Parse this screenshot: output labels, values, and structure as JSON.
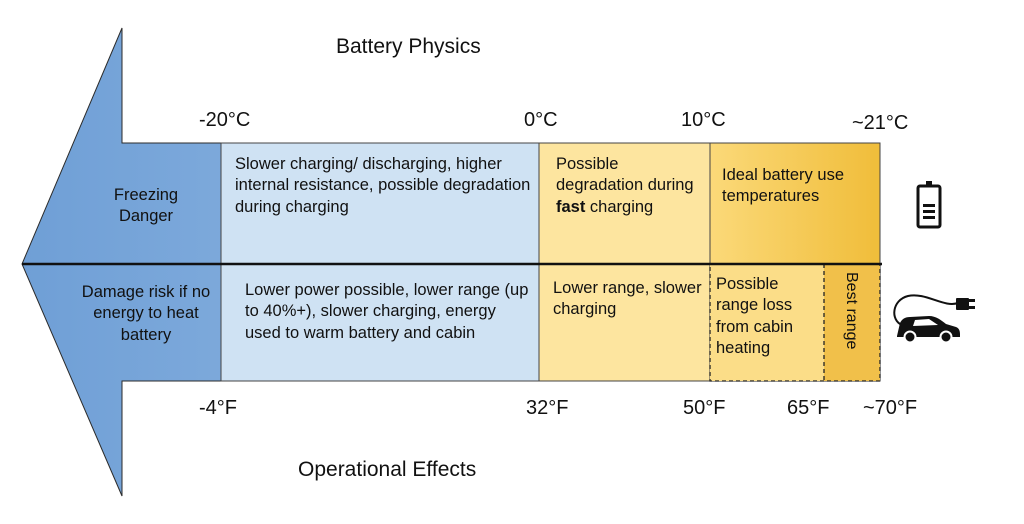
{
  "titles": {
    "top": "Battery Physics",
    "bottom": "Operational Effects"
  },
  "celsius_ticks": [
    "-20°C",
    "0°C",
    "10°C",
    "~21°C"
  ],
  "fahrenheit_ticks": [
    "-4°F",
    "32°F",
    "50°F",
    "65°F",
    "~70°F"
  ],
  "physics_row": {
    "freezing": "Freezing Danger",
    "cold": "Slower charging/ discharging, higher internal resistance, possible degradation during charging",
    "cool_before": "Possible degradation during ",
    "cool_bold": "fast",
    "cool_after": " charging",
    "ideal": "Ideal battery use temperatures"
  },
  "operations_row": {
    "freezing": "Damage risk if no energy to heat battery",
    "cold": "Lower power possible, lower range (up to 40%+), slower charging, energy used to warm battery and cabin",
    "cool": "Lower range, slower charging",
    "mild": "Possible range loss from cabin heating",
    "best": "Best range"
  },
  "icons": [
    "battery-icon",
    "electric-car-plug-icon"
  ],
  "colors": {
    "arrow_blue": "#7aaedd",
    "light_blue": "#cfe2f3",
    "light_yellow": "#fde29a",
    "orange": "#f0c145",
    "black": "#000000"
  }
}
